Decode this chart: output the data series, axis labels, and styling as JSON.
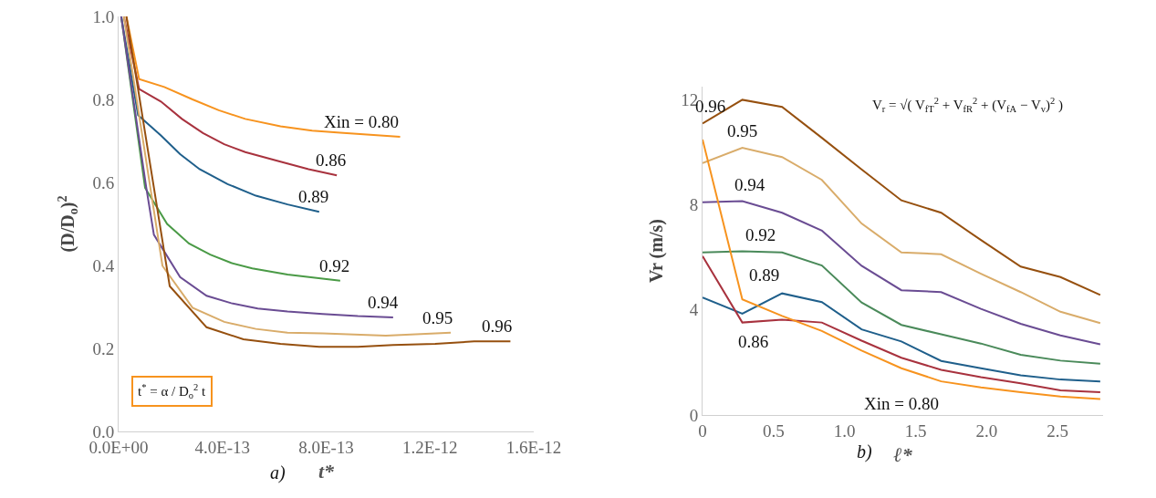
{
  "chart_data": [
    {
      "type": "line",
      "xlabel": "t*",
      "ylabel": "(D/D$_{o}$)$^{2}$",
      "xlim": [
        0,
        1.6e-12
      ],
      "xticks": [
        {
          "value": 0,
          "label": "0.0E+00"
        },
        {
          "value": 4e-13,
          "label": "4.0E-13"
        },
        {
          "value": 8e-13,
          "label": "8.0E-13"
        },
        {
          "value": 1.2e-12,
          "label": "1.2E-12"
        },
        {
          "value": 1.6e-12,
          "label": "1.6E-12"
        }
      ],
      "ylim": [
        0,
        1
      ],
      "yticks": [
        {
          "value": 0,
          "label": "0.0"
        },
        {
          "value": 0.2,
          "label": "0.2"
        },
        {
          "value": 0.4,
          "label": "0.4"
        },
        {
          "value": 0.6,
          "label": "0.6"
        },
        {
          "value": 0.8,
          "label": "0.8"
        },
        {
          "value": 1,
          "label": "1.0"
        }
      ],
      "grid": false,
      "legend": false,
      "marker": "none",
      "line_style": "solid",
      "series": [
        {
          "name": "Xin = 0.80",
          "color": "#f7931e",
          "x": [
            3e-14,
            7.9e-14,
            1.76e-13,
            2.85e-13,
            3.86e-13,
            4.88e-13,
            6.24e-13,
            7.46e-13,
            8.54e-13,
            1.085e-12
          ],
          "values": [
            1,
            0.849,
            0.83,
            0.8,
            0.774,
            0.753,
            0.735,
            0.725,
            0.72,
            0.71
          ]
        },
        {
          "name": "0.86",
          "color": "#a8323e",
          "x": [
            2e-14,
            7.9e-14,
            1.63e-13,
            2.44e-13,
            3.25e-13,
            4.07e-13,
            4.88e-13,
            6.24e-13,
            7.32e-13,
            8.41e-13
          ],
          "values": [
            1,
            0.825,
            0.795,
            0.753,
            0.719,
            0.692,
            0.673,
            0.65,
            0.632,
            0.617
          ]
        },
        {
          "name": "0.89",
          "color": "#1f5f8b",
          "x": [
            1e-14,
            7.5e-14,
            1.63e-13,
            2.37e-13,
            3.12e-13,
            4.2e-13,
            5.29e-13,
            6.51e-13,
            7.73e-13
          ],
          "values": [
            1,
            0.762,
            0.713,
            0.668,
            0.632,
            0.596,
            0.568,
            0.547,
            0.529
          ]
        },
        {
          "name": "0.92",
          "color": "#4a9a46",
          "x": [
            1e-14,
            1.02e-13,
            1.87e-13,
            2.71e-13,
            3.53e-13,
            4.34e-13,
            5.15e-13,
            6.51e-13,
            8.54e-13
          ],
          "values": [
            1,
            0.587,
            0.5,
            0.453,
            0.426,
            0.406,
            0.393,
            0.378,
            0.363
          ]
        },
        {
          "name": "0.94",
          "color": "#6a4c93",
          "x": [
            1e-14,
            1.06e-13,
            1.36e-13,
            2.37e-13,
            3.39e-13,
            4.34e-13,
            5.36e-13,
            6.51e-13,
            7.86e-13,
            9.22e-13,
            1.058e-12
          ],
          "values": [
            1,
            0.59,
            0.474,
            0.372,
            0.327,
            0.309,
            0.296,
            0.289,
            0.283,
            0.278,
            0.275
          ]
        },
        {
          "name": "0.95",
          "color": "#d9ac6a",
          "x": [
            2e-14,
            1.69e-13,
            2.85e-13,
            4.07e-13,
            5.29e-13,
            6.51e-13,
            7.86e-13,
            1.03e-12,
            1.28e-12
          ],
          "values": [
            1,
            0.399,
            0.298,
            0.264,
            0.247,
            0.238,
            0.236,
            0.231,
            0.238
          ]
        },
        {
          "name": "0.96",
          "color": "#96500f",
          "x": [
            3e-14,
            1.97e-13,
            3.39e-13,
            4.81e-13,
            6.24e-13,
            7.73e-13,
            9.22e-13,
            1.058e-12,
            1.22e-12,
            1.37e-12,
            1.51e-12
          ],
          "values": [
            1,
            0.35,
            0.251,
            0.222,
            0.211,
            0.204,
            0.204,
            0.208,
            0.211,
            0.217,
            0.217
          ]
        }
      ],
      "annotations": [
        "t$^{*}$ = α / D$_{o}$$^{2}$ t",
        "a)"
      ]
    },
    {
      "type": "line",
      "xlabel": "ℓ*",
      "ylabel": "Vr (m/s)",
      "xlim": [
        0,
        2.82
      ],
      "xticks": [
        0,
        0.5,
        {
          "value": 1,
          "label": "1.0"
        },
        1.5,
        {
          "value": 2,
          "label": "2.0"
        },
        2.5
      ],
      "ylim": [
        0,
        12.5
      ],
      "yticks": [
        0,
        4,
        8,
        12
      ],
      "grid": false,
      "legend": false,
      "marker": "none",
      "line_style": "solid",
      "x": [
        0,
        0.28,
        0.56,
        0.84,
        1.12,
        1.4,
        1.68,
        1.96,
        2.24,
        2.52,
        2.8
      ],
      "series": [
        {
          "name": "0.96",
          "color": "#96500f",
          "values": [
            11.1,
            12.0,
            11.73,
            10.55,
            9.35,
            8.17,
            7.7,
            6.66,
            5.65,
            5.25,
            4.57
          ]
        },
        {
          "name": "0.95",
          "color": "#d9ac6a",
          "values": [
            9.59,
            10.17,
            9.82,
            8.95,
            7.29,
            6.19,
            6.12,
            5.38,
            4.68,
            3.93,
            3.5
          ]
        },
        {
          "name": "0.94",
          "color": "#6a4c93",
          "values": [
            8.1,
            8.14,
            7.7,
            7.02,
            5.68,
            4.75,
            4.68,
            4.04,
            3.47,
            3.03,
            2.69
          ]
        },
        {
          "name": "0.92",
          "color": "#4a8a5a",
          "values": [
            6.19,
            6.23,
            6.19,
            5.69,
            4.28,
            3.43,
            3.07,
            2.72,
            2.29,
            2.07,
            1.95
          ]
        },
        {
          "name": "0.89",
          "color": "#1f5f8b",
          "values": [
            4.47,
            3.86,
            4.63,
            4.3,
            3.26,
            2.8,
            2.06,
            1.78,
            1.51,
            1.35,
            1.28
          ]
        },
        {
          "name": "0.86",
          "color": "#a8323e",
          "values": [
            6.05,
            3.52,
            3.63,
            3.52,
            2.83,
            2.18,
            1.72,
            1.44,
            1.21,
            0.94,
            0.87
          ]
        },
        {
          "name": "Xin = 0.80",
          "color": "#f7931e",
          "values": [
            10.49,
            4.4,
            3.77,
            3.2,
            2.45,
            1.78,
            1.28,
            1.05,
            0.87,
            0.7,
            0.61
          ]
        }
      ],
      "annotations": [
        "V$_{r}$ = √( V$_{fT}$$^{2}$ + V$_{fR}$$^{2}$ + (V$_{fA}$ − V$_{v}$)$^{2}$ )",
        "b)"
      ]
    }
  ]
}
